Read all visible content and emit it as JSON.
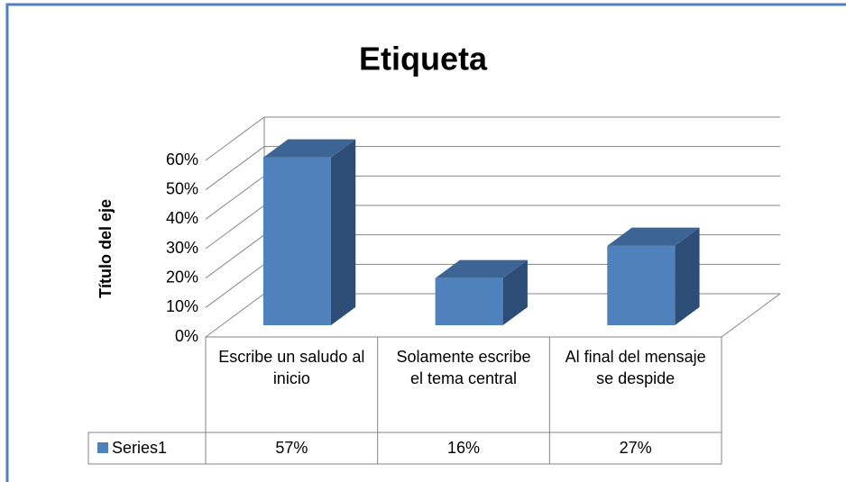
{
  "chart_data": {
    "type": "bar3d",
    "title": "Etiqueta",
    "y_axis_label": "Título del eje",
    "categories": [
      "Escribe un saludo al inicio",
      "Solamente escribe el tema central",
      "Al final del mensaje se despide"
    ],
    "series": [
      {
        "name": "Series1",
        "color": "#4f81bd",
        "values": [
          57,
          16,
          27
        ],
        "value_labels": [
          "57%",
          "16%",
          "27%"
        ]
      }
    ],
    "ylim": [
      0,
      60
    ],
    "yticks": [
      {
        "value": 0,
        "label": "0%"
      },
      {
        "value": 10,
        "label": "10%"
      },
      {
        "value": 20,
        "label": "20%"
      },
      {
        "value": 30,
        "label": "30%"
      },
      {
        "value": 40,
        "label": "40%"
      },
      {
        "value": 50,
        "label": "50%"
      },
      {
        "value": 60,
        "label": "60%"
      }
    ],
    "grid": true,
    "data_table": true
  }
}
